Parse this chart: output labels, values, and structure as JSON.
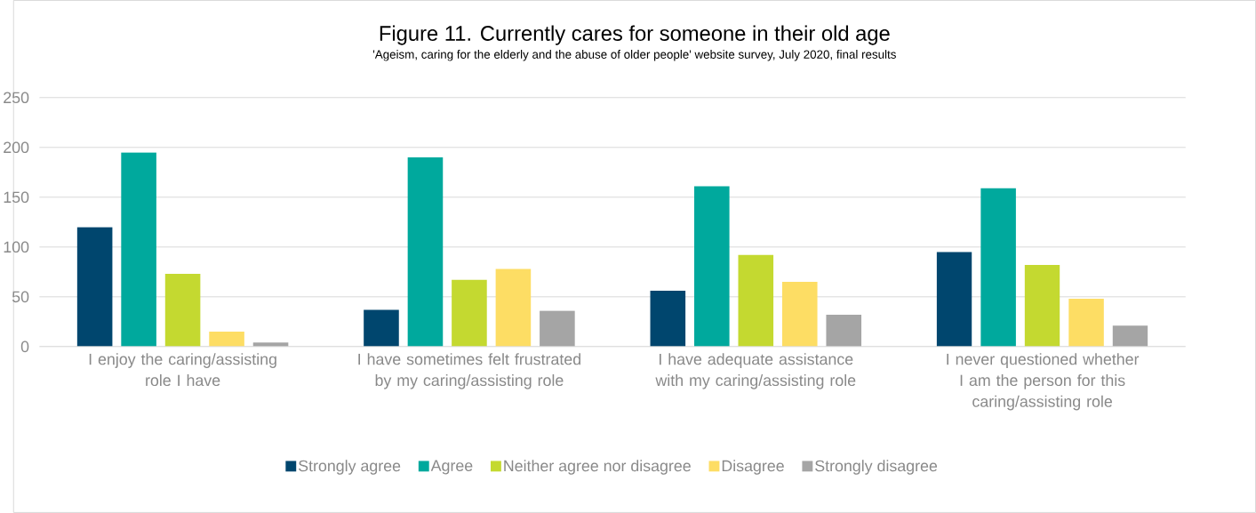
{
  "chart_data": {
    "type": "bar",
    "title": "Figure 11. Currently cares for someone in their old age",
    "subtitle": "'Ageism, caring for the elderly and the abuse of older people' website survey, July 2020, final results",
    "categories": [
      "I enjoy the caring/assisting role I have",
      "I have sometimes felt frustrated by my caring/assisting role",
      "I have adequate assistance with my caring/assisting role",
      "I never questioned whether I am the person for this caring/assisting role"
    ],
    "series": [
      {
        "name": "Strongly agree",
        "color": "#00466e",
        "values": [
          120,
          37,
          56,
          95
        ]
      },
      {
        "name": "Agree",
        "color": "#00a99d",
        "values": [
          195,
          190,
          161,
          159
        ]
      },
      {
        "name": "Neither agree nor disagree",
        "color": "#c4d930",
        "values": [
          73,
          67,
          92,
          82
        ]
      },
      {
        "name": "Disagree",
        "color": "#fddd64",
        "values": [
          15,
          78,
          65,
          48
        ]
      },
      {
        "name": "Strongly disagree",
        "color": "#a5a5a5",
        "values": [
          4,
          36,
          32,
          21
        ]
      }
    ],
    "ylim": [
      0,
      250
    ],
    "yticks": [
      0,
      50,
      100,
      150,
      200,
      250
    ],
    "grid": "y",
    "legend": "bottom"
  }
}
